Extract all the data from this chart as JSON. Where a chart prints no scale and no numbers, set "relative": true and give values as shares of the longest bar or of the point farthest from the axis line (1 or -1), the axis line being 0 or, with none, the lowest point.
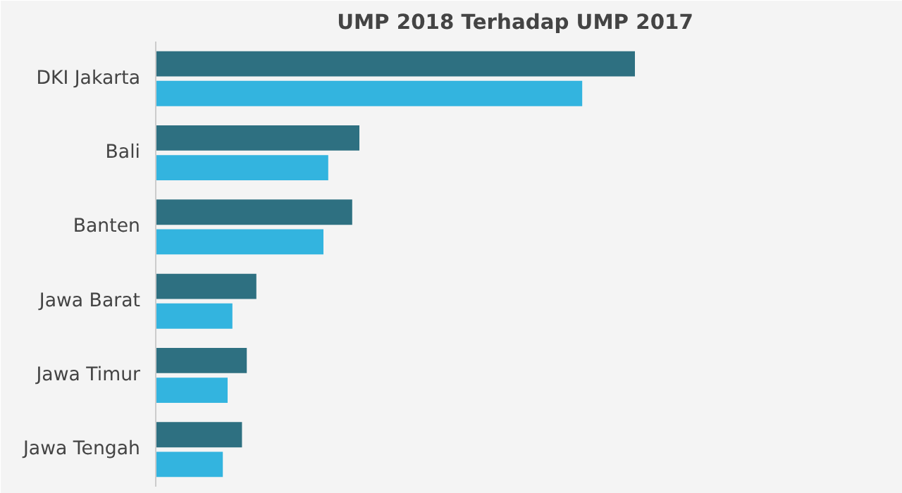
{
  "chart_data": {
    "type": "bar",
    "orientation": "horizontal",
    "relative": true,
    "title": "UMP 2018 Terhadap UMP 2017",
    "categories": [
      "DKI Jakarta",
      "Bali",
      "Banten",
      "Jawa Barat",
      "Jawa Timur",
      "Jawa Tengah"
    ],
    "series": [
      {
        "color": "#2e7081",
        "values": [
          1,
          0.425,
          0.41,
          0.21,
          0.19,
          0.18
        ]
      },
      {
        "color": "#33b4df",
        "values": [
          0.89,
          0.36,
          0.35,
          0.16,
          0.15,
          0.14
        ]
      }
    ]
  }
}
